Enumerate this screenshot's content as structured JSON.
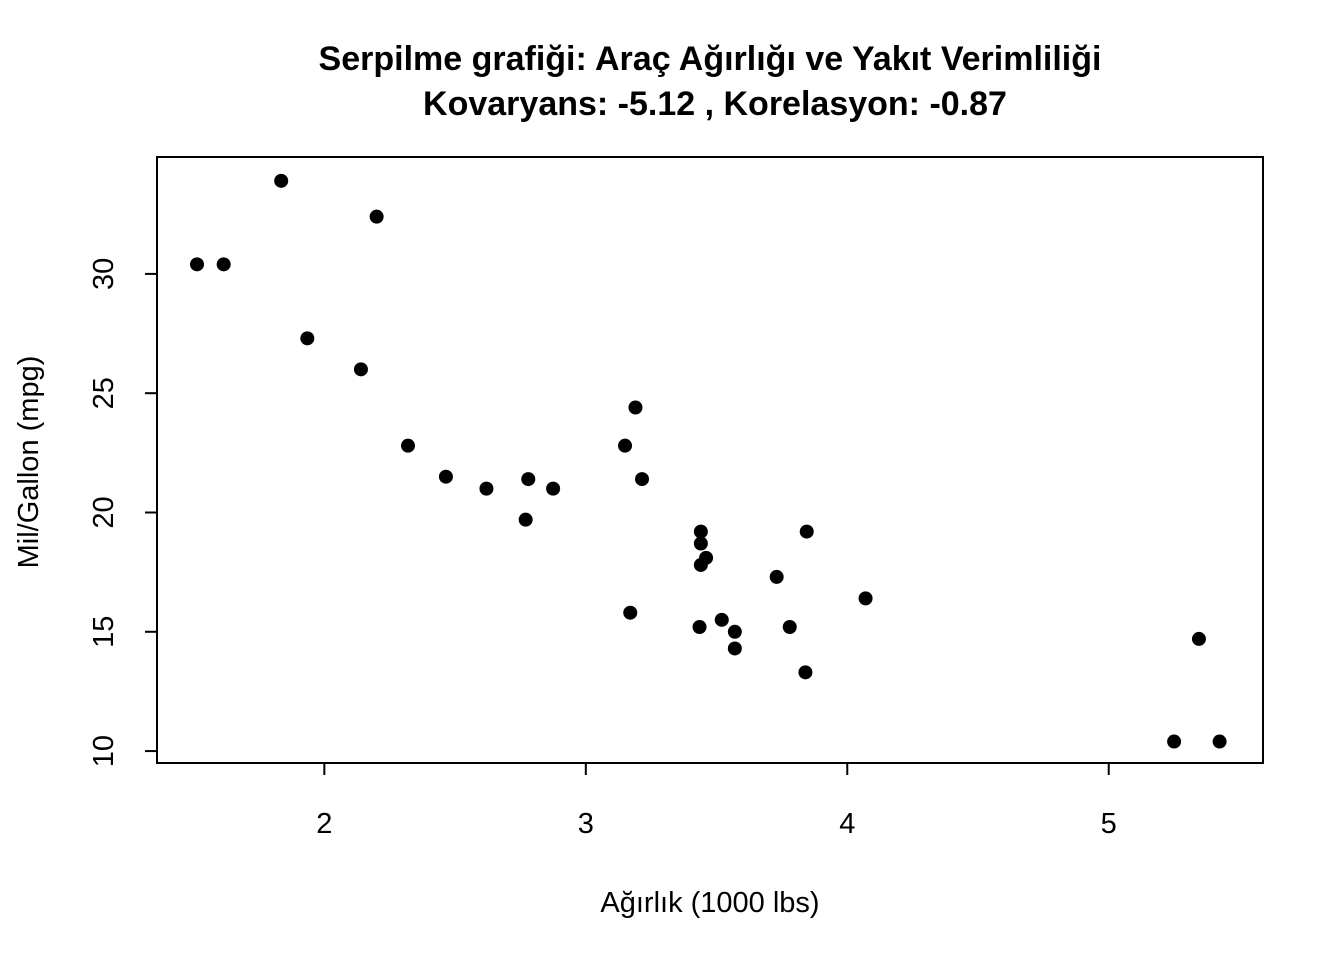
{
  "chart_data": {
    "type": "scatter",
    "title": "Serpilme grafiği: Araç Ağırlığı ve Yakıt Verimliliği",
    "subtitle": "Kovaryans:  -5.12 , Korelasyon:  -0.87",
    "xlabel": "Ağırlık (1000 lbs)",
    "ylabel": "Mil/Gallon (mpg)",
    "xlim": [
      1.36,
      5.59
    ],
    "ylim": [
      9.5,
      34.9
    ],
    "xticks": [
      2,
      3,
      4,
      5
    ],
    "yticks": [
      10,
      15,
      20,
      25,
      30
    ],
    "grid": false,
    "marker_color": "#000000",
    "points": [
      {
        "x": 2.62,
        "y": 21.0
      },
      {
        "x": 2.875,
        "y": 21.0
      },
      {
        "x": 2.32,
        "y": 22.8
      },
      {
        "x": 3.215,
        "y": 21.4
      },
      {
        "x": 3.44,
        "y": 18.7
      },
      {
        "x": 3.46,
        "y": 18.1
      },
      {
        "x": 3.57,
        "y": 14.3
      },
      {
        "x": 3.19,
        "y": 24.4
      },
      {
        "x": 3.15,
        "y": 22.8
      },
      {
        "x": 3.44,
        "y": 19.2
      },
      {
        "x": 3.44,
        "y": 17.8
      },
      {
        "x": 4.07,
        "y": 16.4
      },
      {
        "x": 3.73,
        "y": 17.3
      },
      {
        "x": 3.78,
        "y": 15.2
      },
      {
        "x": 5.25,
        "y": 10.4
      },
      {
        "x": 5.424,
        "y": 10.4
      },
      {
        "x": 5.345,
        "y": 14.7
      },
      {
        "x": 2.2,
        "y": 32.4
      },
      {
        "x": 1.615,
        "y": 30.4
      },
      {
        "x": 1.835,
        "y": 33.9
      },
      {
        "x": 2.465,
        "y": 21.5
      },
      {
        "x": 3.52,
        "y": 15.5
      },
      {
        "x": 3.435,
        "y": 15.2
      },
      {
        "x": 3.84,
        "y": 13.3
      },
      {
        "x": 3.845,
        "y": 19.2
      },
      {
        "x": 1.935,
        "y": 27.3
      },
      {
        "x": 2.14,
        "y": 26.0
      },
      {
        "x": 1.513,
        "y": 30.4
      },
      {
        "x": 3.17,
        "y": 15.8
      },
      {
        "x": 2.77,
        "y": 19.7
      },
      {
        "x": 3.57,
        "y": 15.0
      },
      {
        "x": 2.78,
        "y": 21.4
      }
    ]
  }
}
